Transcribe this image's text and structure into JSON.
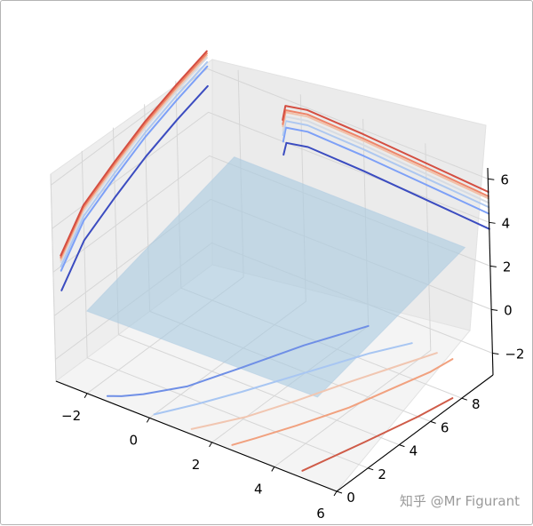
{
  "watermark": "知乎 @Mr Figurant",
  "chart_data": {
    "type": "surface",
    "title": "",
    "xlabel": "",
    "ylabel": "",
    "zlabel": "",
    "xlim": [
      -3,
      6
    ],
    "ylim": [
      0,
      10
    ],
    "zlim": [
      -3,
      6.5
    ],
    "x_ticks": [
      -2,
      0,
      2,
      4,
      6
    ],
    "y_ticks": [
      0,
      2,
      4,
      6,
      8
    ],
    "z_ticks": [
      -2,
      0,
      2,
      4,
      6
    ],
    "grid": true,
    "colormap": "coolwarm",
    "surface": {
      "color": "#a9c9e0",
      "alpha": 0.6,
      "x_range": [
        -2.2,
        5.2
      ],
      "y_range": [
        0.5,
        10
      ],
      "corner_z": {
        "near_left": 0.4,
        "near_right": 0.6,
        "far_left": 2.4,
        "far_right": 2.4
      }
    },
    "contour_series": [
      {
        "projection": "z",
        "colors": [
          "#6f8fe6",
          "#a8c6f2",
          "#f1c6b1",
          "#f1a17f",
          "#cf5b48"
        ],
        "offset": -3,
        "curves": [
          [
            [
              -1.5,
              0.3
            ],
            [
              -1.2,
              0.6
            ],
            [
              -0.8,
              1.2
            ],
            [
              -0.1,
              2.6
            ],
            [
              0.5,
              4.8
            ],
            [
              1.2,
              7.5
            ],
            [
              2.0,
              10
            ]
          ],
          [
            [
              0.0,
              0.3
            ],
            [
              0.2,
              0.8
            ],
            [
              0.6,
              1.8
            ],
            [
              1.2,
              3.5
            ],
            [
              2.0,
              6.0
            ],
            [
              2.8,
              8.5
            ],
            [
              3.4,
              10
            ]
          ],
          [
            [
              1.2,
              0.3
            ],
            [
              1.5,
              1.0
            ],
            [
              2.0,
              2.2
            ],
            [
              2.6,
              4.2
            ],
            [
              3.2,
              6.5
            ],
            [
              3.8,
              8.6
            ],
            [
              4.2,
              10
            ]
          ],
          [
            [
              2.5,
              0.3
            ],
            [
              2.8,
              1.2
            ],
            [
              3.3,
              2.8
            ],
            [
              3.9,
              5.0
            ],
            [
              4.3,
              7.2
            ],
            [
              4.6,
              8.8
            ],
            [
              4.7,
              10
            ]
          ],
          [
            [
              4.7,
              0.4
            ],
            [
              4.9,
              1.6
            ],
            [
              5.2,
              3.4
            ],
            [
              5.6,
              6.0
            ],
            [
              5.8,
              7.8
            ]
          ]
        ]
      },
      {
        "projection": "x",
        "offset": -3,
        "colors": [
          "#3b4cc0",
          "#7da0f7",
          "#aec8f0",
          "#d7dce3",
          "#f1c1a9",
          "#ee8468",
          "#d44e41"
        ],
        "curves": [
          [
            [
              0.5,
              0.9
            ],
            [
              2,
              2.4
            ],
            [
              4,
              3.3
            ],
            [
              6,
              4.1
            ],
            [
              8,
              4.7
            ],
            [
              10,
              5.2
            ]
          ],
          [
            [
              0.5,
              1.8
            ],
            [
              2,
              3.3
            ],
            [
              4,
              4.2
            ],
            [
              6,
              5.0
            ],
            [
              8,
              5.6
            ],
            [
              10,
              6.1
            ]
          ],
          [
            [
              0.5,
              2.0
            ],
            [
              2,
              3.5
            ],
            [
              4,
              4.4
            ],
            [
              6,
              5.2
            ],
            [
              8,
              5.8
            ],
            [
              10,
              6.3
            ]
          ],
          [
            [
              0.5,
              2.2
            ],
            [
              2,
              3.7
            ],
            [
              4,
              4.6
            ],
            [
              6,
              5.4
            ],
            [
              8,
              6.0
            ],
            [
              10,
              6.5
            ]
          ],
          [
            [
              0.5,
              2.3
            ],
            [
              2,
              3.8
            ],
            [
              4,
              4.7
            ],
            [
              6,
              5.5
            ],
            [
              8,
              6.1
            ],
            [
              10,
              6.6
            ]
          ],
          [
            [
              0.5,
              2.4
            ],
            [
              2,
              3.9
            ],
            [
              4,
              4.8
            ],
            [
              6,
              5.6
            ],
            [
              8,
              6.2
            ],
            [
              10,
              6.7
            ]
          ],
          [
            [
              0.5,
              2.5
            ],
            [
              2,
              4.0
            ],
            [
              4,
              4.9
            ],
            [
              6,
              5.7
            ],
            [
              8,
              6.3
            ],
            [
              10,
              6.8
            ]
          ]
        ]
      },
      {
        "projection": "y",
        "offset": 10,
        "colors": [
          "#3b4cc0",
          "#7da0f7",
          "#aec8f0",
          "#d7dce3",
          "#f1c1a9",
          "#ee8468",
          "#d44e41"
        ],
        "curves": [
          [
            [
              -0.6,
              3.4
            ],
            [
              -0.5,
              4.0
            ],
            [
              0.2,
              4.2
            ],
            [
              2,
              4.1
            ],
            [
              4,
              3.9
            ],
            [
              6,
              3.7
            ]
          ],
          [
            [
              -0.6,
              4.0
            ],
            [
              -0.5,
              4.7
            ],
            [
              0.2,
              4.9
            ],
            [
              2,
              4.8
            ],
            [
              4,
              4.6
            ],
            [
              6,
              4.4
            ]
          ],
          [
            [
              -0.6,
              4.3
            ],
            [
              -0.5,
              5.0
            ],
            [
              0.2,
              5.2
            ],
            [
              2,
              5.1
            ],
            [
              4,
              4.9
            ],
            [
              6,
              4.7
            ]
          ],
          [
            [
              -0.6,
              4.5
            ],
            [
              -0.5,
              5.2
            ],
            [
              0.2,
              5.4
            ],
            [
              2,
              5.3
            ],
            [
              4,
              5.1
            ],
            [
              6,
              4.9
            ]
          ],
          [
            [
              -0.6,
              4.7
            ],
            [
              -0.5,
              5.4
            ],
            [
              0.2,
              5.6
            ],
            [
              2,
              5.5
            ],
            [
              4,
              5.3
            ],
            [
              6,
              5.1
            ]
          ],
          [
            [
              -0.6,
              4.8
            ],
            [
              -0.5,
              5.5
            ],
            [
              0.2,
              5.7
            ],
            [
              2,
              5.6
            ],
            [
              4,
              5.4
            ],
            [
              6,
              5.2
            ]
          ],
          [
            [
              -0.6,
              5.0
            ],
            [
              -0.5,
              5.7
            ],
            [
              0.2,
              5.9
            ],
            [
              2,
              5.8
            ],
            [
              4,
              5.6
            ],
            [
              6,
              5.4
            ]
          ]
        ]
      }
    ]
  }
}
